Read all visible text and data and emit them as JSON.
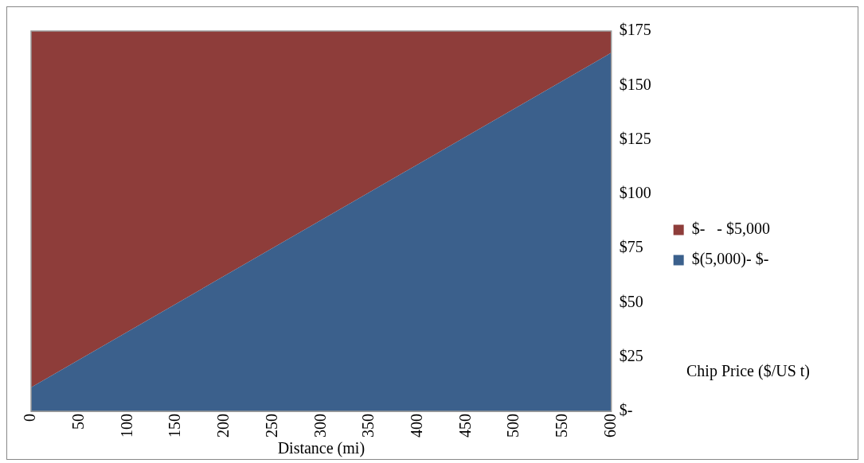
{
  "chart_data": {
    "type": "area",
    "stacked": true,
    "xlabel": "Distance (mi)",
    "ylabel": "Chip Price ($/US t)",
    "x": [
      0,
      600
    ],
    "series": [
      {
        "name": "$(5,000)- $-",
        "color": "#3b608c",
        "values": [
          11,
          165
        ]
      },
      {
        "name": "$-   - $5,000",
        "color": "#8e3d3a",
        "values": [
          164,
          10
        ]
      }
    ],
    "xlim": [
      0,
      600
    ],
    "xticks": [
      0,
      50,
      100,
      150,
      200,
      250,
      300,
      350,
      400,
      450,
      500,
      550,
      600
    ],
    "ylim": [
      0,
      175
    ],
    "yticks": [
      {
        "value": 0,
        "label": "$-"
      },
      {
        "value": 25,
        "label": "$25"
      },
      {
        "value": 50,
        "label": "$50"
      },
      {
        "value": 75,
        "label": "$75"
      },
      {
        "value": 100,
        "label": "$100"
      },
      {
        "value": 125,
        "label": "$125"
      },
      {
        "value": 150,
        "label": "$150"
      },
      {
        "value": 175,
        "label": "$175"
      }
    ],
    "grid": false,
    "legend": "right"
  }
}
